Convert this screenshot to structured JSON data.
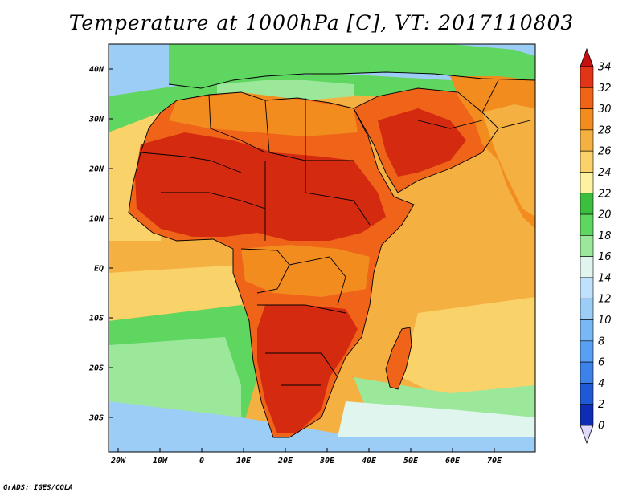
{
  "title": "Temperature at 1000hPa [C], VT: 2017110803",
  "credit": "GrADS: IGES/COLA",
  "axes": {
    "lat_ticks": [
      {
        "lat": 40,
        "label": "40N"
      },
      {
        "lat": 30,
        "label": "30N"
      },
      {
        "lat": 20,
        "label": "20N"
      },
      {
        "lat": 10,
        "label": "10N"
      },
      {
        "lat": 0,
        "label": "EQ"
      },
      {
        "lat": -10,
        "label": "10S"
      },
      {
        "lat": -20,
        "label": "20S"
      },
      {
        "lat": -30,
        "label": "30S"
      }
    ],
    "lon_ticks": [
      {
        "lon": -20,
        "label": "20W"
      },
      {
        "lon": -10,
        "label": "10W"
      },
      {
        "lon": 0,
        "label": "0"
      },
      {
        "lon": 10,
        "label": "10E"
      },
      {
        "lon": 20,
        "label": "20E"
      },
      {
        "lon": 30,
        "label": "30E"
      },
      {
        "lon": 40,
        "label": "40E"
      },
      {
        "lon": 50,
        "label": "50E"
      },
      {
        "lon": 60,
        "label": "60E"
      },
      {
        "lon": 70,
        "label": "70E"
      }
    ]
  },
  "colorbar": {
    "unit": "C",
    "levels": [
      {
        "value": 0,
        "label": "0",
        "color": "#0a0a80"
      },
      {
        "value": 2,
        "label": "2",
        "color": "#0d2db5"
      },
      {
        "value": 4,
        "label": "4",
        "color": "#1f5ad6"
      },
      {
        "value": 6,
        "label": "6",
        "color": "#3c82e8"
      },
      {
        "value": 8,
        "label": "8",
        "color": "#5aa0f2"
      },
      {
        "value": 10,
        "label": "10",
        "color": "#78b8f5"
      },
      {
        "value": 12,
        "label": "12",
        "color": "#9ccdf7"
      },
      {
        "value": 14,
        "label": "14",
        "color": "#bfe1fb"
      },
      {
        "value": 16,
        "label": "16",
        "color": "#e0f5ee"
      },
      {
        "value": 18,
        "label": "18",
        "color": "#9be89b"
      },
      {
        "value": 20,
        "label": "20",
        "color": "#5fd65f"
      },
      {
        "value": 22,
        "label": "22",
        "color": "#3cbf3c"
      },
      {
        "value": 24,
        "label": "24",
        "color": "#fef2a0"
      },
      {
        "value": 26,
        "label": "26",
        "color": "#fad26a"
      },
      {
        "value": 28,
        "label": "28",
        "color": "#f5b042"
      },
      {
        "value": 30,
        "label": "30",
        "color": "#f28c1f"
      },
      {
        "value": 32,
        "label": "32",
        "color": "#ef6419"
      },
      {
        "value": 34,
        "label": "34",
        "color": "#e23416"
      }
    ],
    "over_color": "#c80f0f",
    "under_color": "#e0d8ff"
  },
  "map_colors": {
    "ocean_hot": "#f5b042",
    "ocean_warm": "#fad26a",
    "ocean_cool": "#9be89b",
    "ocean_cold": "#9ccdf7",
    "land_hot": "#d42a10",
    "land_warm": "#ef6419",
    "land_mild": "#f28c1f",
    "med_green": "#5fd65f",
    "border_color": "#000000"
  }
}
